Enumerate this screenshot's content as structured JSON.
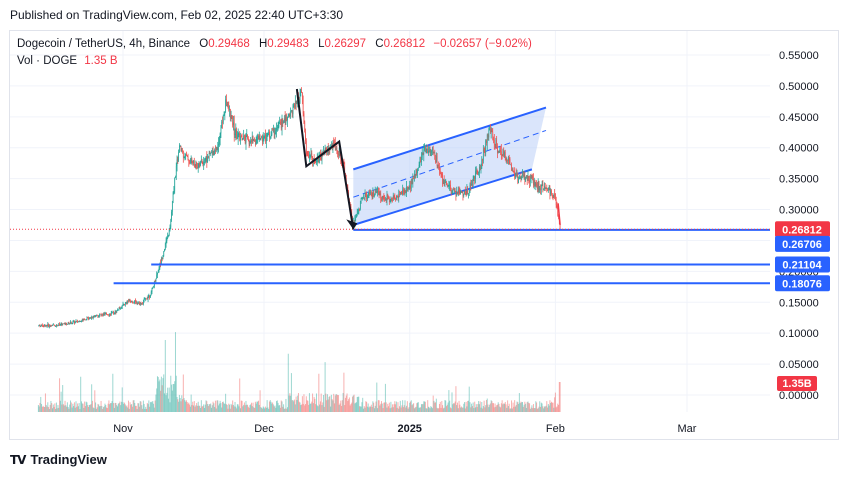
{
  "published": "Published on TradingView.com, Feb 02, 2025 22:40 UTC+3:30",
  "legend": {
    "symbol": "Dogecoin / TetherUS, 4h, Binance",
    "o_label": "O",
    "o_value": "0.29468",
    "h_label": "H",
    "h_value": "0.29483",
    "l_label": "L",
    "l_value": "0.26297",
    "c_label": "C",
    "c_value": "0.26812",
    "change": "−0.02657 (−9.02%)",
    "vol_label": "Vol · DOGE",
    "vol_value": "1.35 B"
  },
  "brand": {
    "name": "TradingView",
    "logo": "TV"
  },
  "colors": {
    "up": "#26a69a",
    "down": "#ef5350",
    "line": "#2962ff",
    "channel_fill": "#bbd0f7",
    "drawing": "#131722",
    "price_badge": "#f23645",
    "level_badge": "#2962ff"
  },
  "chart_data": {
    "type": "candlestick",
    "title": "Dogecoin / TetherUS, 4h, Binance",
    "y_axis": {
      "ticks": [
        "0.55000",
        "0.50000",
        "0.45000",
        "0.40000",
        "0.35000",
        "0.30000",
        "0.25000",
        "0.20000",
        "0.15000",
        "0.10000",
        "0.05000",
        "0.00000"
      ],
      "range": [
        -0.01,
        0.57
      ]
    },
    "x_axis": {
      "ticks": [
        "Nov",
        "Dec",
        "2025",
        "Feb",
        "Mar"
      ]
    },
    "price_path": [
      [
        "Oct 14",
        0.112
      ],
      [
        "Oct 18",
        0.113
      ],
      [
        "Oct 22",
        0.118
      ],
      [
        "Oct 26",
        0.128
      ],
      [
        "Oct 30",
        0.132
      ],
      [
        "Nov 02",
        0.152
      ],
      [
        "Nov 05",
        0.148
      ],
      [
        "Nov 07",
        0.165
      ],
      [
        "Nov 09",
        0.215
      ],
      [
        "Nov 11",
        0.27
      ],
      [
        "Nov 12",
        0.35
      ],
      [
        "Nov 13",
        0.4
      ],
      [
        "Nov 15",
        0.38
      ],
      [
        "Nov 17",
        0.37
      ],
      [
        "Nov 19",
        0.385
      ],
      [
        "Nov 21",
        0.4
      ],
      [
        "Nov 23",
        0.475
      ],
      [
        "Nov 25",
        0.42
      ],
      [
        "Nov 28",
        0.41
      ],
      [
        "Dec 02",
        0.42
      ],
      [
        "Dec 05",
        0.44
      ],
      [
        "Dec 08",
        0.47
      ],
      [
        "Dec 09",
        0.49
      ],
      [
        "Dec 10",
        0.39
      ],
      [
        "Dec 12",
        0.38
      ],
      [
        "Dec 14",
        0.395
      ],
      [
        "Dec 16",
        0.405
      ],
      [
        "Dec 18",
        0.37
      ],
      [
        "Dec 20",
        0.275
      ],
      [
        "Dec 22",
        0.32
      ],
      [
        "Dec 25",
        0.325
      ],
      [
        "Dec 28",
        0.315
      ],
      [
        "Jan 01",
        0.335
      ],
      [
        "Jan 04",
        0.395
      ],
      [
        "Jan 06",
        0.395
      ],
      [
        "Jan 08",
        0.345
      ],
      [
        "Jan 10",
        0.33
      ],
      [
        "Jan 13",
        0.325
      ],
      [
        "Jan 16",
        0.37
      ],
      [
        "Jan 18",
        0.43
      ],
      [
        "Jan 20",
        0.395
      ],
      [
        "Jan 22",
        0.38
      ],
      [
        "Jan 24",
        0.35
      ],
      [
        "Jan 26",
        0.355
      ],
      [
        "Jan 28",
        0.34
      ],
      [
        "Jan 30",
        0.335
      ],
      [
        "Feb 01",
        0.32
      ],
      [
        "Feb 02",
        0.268
      ]
    ],
    "last_price": 0.26812,
    "horizontal_levels": [
      0.26706,
      0.21104,
      0.18076
    ],
    "price_labels": [
      "0.26812",
      "0.26706",
      "0.21104",
      "0.18076"
    ],
    "volume_label": "1.35B",
    "channel": {
      "lower": [
        [
          "Dec 20",
          0.275
        ],
        [
          "Jan 27",
          0.365
        ]
      ],
      "upper": [
        [
          "Dec 20",
          0.365
        ],
        [
          "Jan 30",
          0.465
        ]
      ]
    },
    "drawings": [
      "zigzag arrow from Dec 09 high down to Dec 20 low",
      "down arrow at Feb 02"
    ]
  }
}
